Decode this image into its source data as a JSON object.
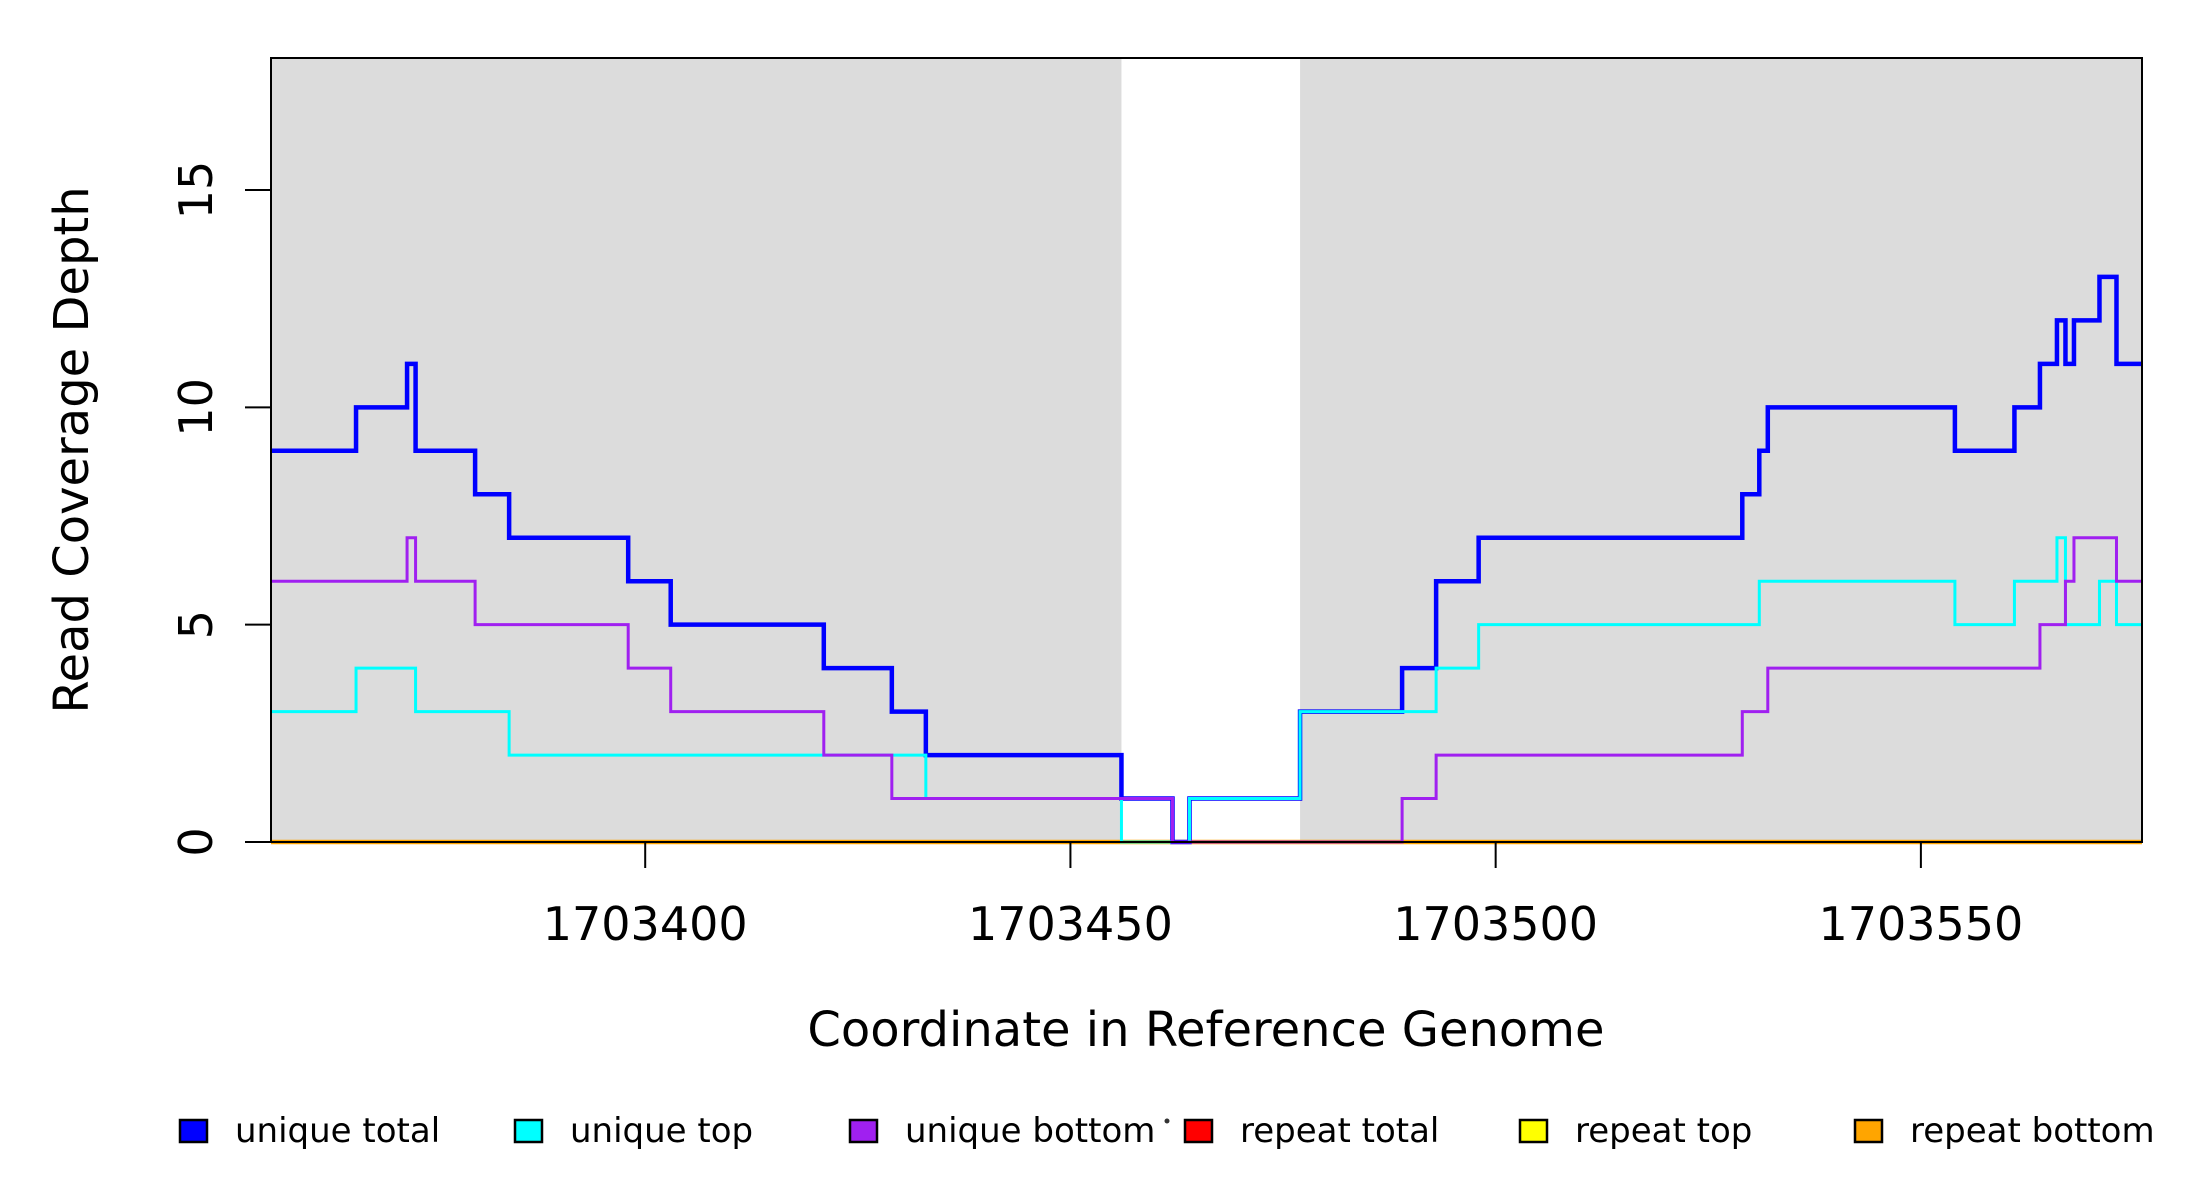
{
  "chart_data": {
    "type": "line",
    "subtype": "step-after",
    "title": "",
    "xlabel": "Coordinate in Reference Genome",
    "ylabel": "Read Coverage Depth",
    "xlim": [
      1703356,
      1703576
    ],
    "ylim": [
      0,
      18
    ],
    "x_ticks": [
      1703400,
      1703450,
      1703500,
      1703550
    ],
    "y_ticks": [
      0,
      5,
      10,
      15
    ],
    "grid": false,
    "plot_background": "#ffffff",
    "shaded_region_color": "#dcdcdc",
    "shaded_regions": [
      {
        "name": "left-aligned-region",
        "x0": 1703356,
        "x1": 1703456
      },
      {
        "name": "right-aligned-region",
        "x0": 1703477,
        "x1": 1703576
      }
    ],
    "series": [
      {
        "name": "repeat total",
        "color": "#ff0000",
        "width": 3,
        "points": [
          [
            1703356,
            0
          ]
        ]
      },
      {
        "name": "repeat top",
        "color": "#ffff00",
        "width": 3,
        "points": [
          [
            1703356,
            0
          ]
        ]
      },
      {
        "name": "repeat bottom",
        "color": "#ffa500",
        "width": 4.5,
        "points": [
          [
            1703356,
            0
          ]
        ]
      },
      {
        "name": "unique total",
        "color": "#0000ff",
        "width": 4.5,
        "points": [
          [
            1703356,
            9
          ],
          [
            1703366,
            10
          ],
          [
            1703372,
            11
          ],
          [
            1703373,
            9
          ],
          [
            1703380,
            8
          ],
          [
            1703384,
            7
          ],
          [
            1703398,
            6
          ],
          [
            1703403,
            5
          ],
          [
            1703421,
            4
          ],
          [
            1703429,
            3
          ],
          [
            1703433,
            2
          ],
          [
            1703456,
            1
          ],
          [
            1703462,
            0
          ],
          [
            1703464,
            1
          ],
          [
            1703477,
            3
          ],
          [
            1703489,
            4
          ],
          [
            1703493,
            6
          ],
          [
            1703498,
            7
          ],
          [
            1703529,
            8
          ],
          [
            1703531,
            9
          ],
          [
            1703532,
            10
          ],
          [
            1703554,
            9
          ],
          [
            1703561,
            10
          ],
          [
            1703564,
            11
          ],
          [
            1703566,
            12
          ],
          [
            1703567,
            11
          ],
          [
            1703568,
            12
          ],
          [
            1703571,
            13
          ],
          [
            1703573,
            11
          ]
        ]
      },
      {
        "name": "unique top",
        "color": "#00ffff",
        "width": 3,
        "points": [
          [
            1703356,
            3
          ],
          [
            1703366,
            4
          ],
          [
            1703373,
            3
          ],
          [
            1703384,
            2
          ],
          [
            1703433,
            1
          ],
          [
            1703456,
            0
          ],
          [
            1703464,
            1
          ],
          [
            1703477,
            3
          ],
          [
            1703493,
            4
          ],
          [
            1703498,
            5
          ],
          [
            1703531,
            6
          ],
          [
            1703554,
            5
          ],
          [
            1703561,
            6
          ],
          [
            1703566,
            7
          ],
          [
            1703567,
            5
          ],
          [
            1703571,
            6
          ],
          [
            1703573,
            5
          ]
        ]
      },
      {
        "name": "unique bottom",
        "color": "#a020f0",
        "width": 3,
        "points": [
          [
            1703356,
            6
          ],
          [
            1703372,
            7
          ],
          [
            1703373,
            6
          ],
          [
            1703380,
            5
          ],
          [
            1703398,
            4
          ],
          [
            1703403,
            3
          ],
          [
            1703421,
            2
          ],
          [
            1703429,
            1
          ],
          [
            1703462,
            0
          ],
          [
            1703489,
            1
          ],
          [
            1703493,
            2
          ],
          [
            1703529,
            3
          ],
          [
            1703532,
            4
          ],
          [
            1703564,
            5
          ],
          [
            1703567,
            6
          ],
          [
            1703568,
            7
          ],
          [
            1703573,
            6
          ]
        ]
      }
    ],
    "legend": {
      "position": "bottom",
      "swatch_border_color": "#000000",
      "items": [
        {
          "label": "unique total",
          "color": "#0000ff"
        },
        {
          "label": "unique top",
          "color": "#00ffff"
        },
        {
          "label": "unique bottom",
          "color": "#a020f0"
        },
        {
          "label": "repeat total",
          "color": "#ff0000"
        },
        {
          "label": "repeat top",
          "color": "#ffff00"
        },
        {
          "label": "repeat bottom",
          "color": "#ffa500"
        }
      ]
    }
  }
}
